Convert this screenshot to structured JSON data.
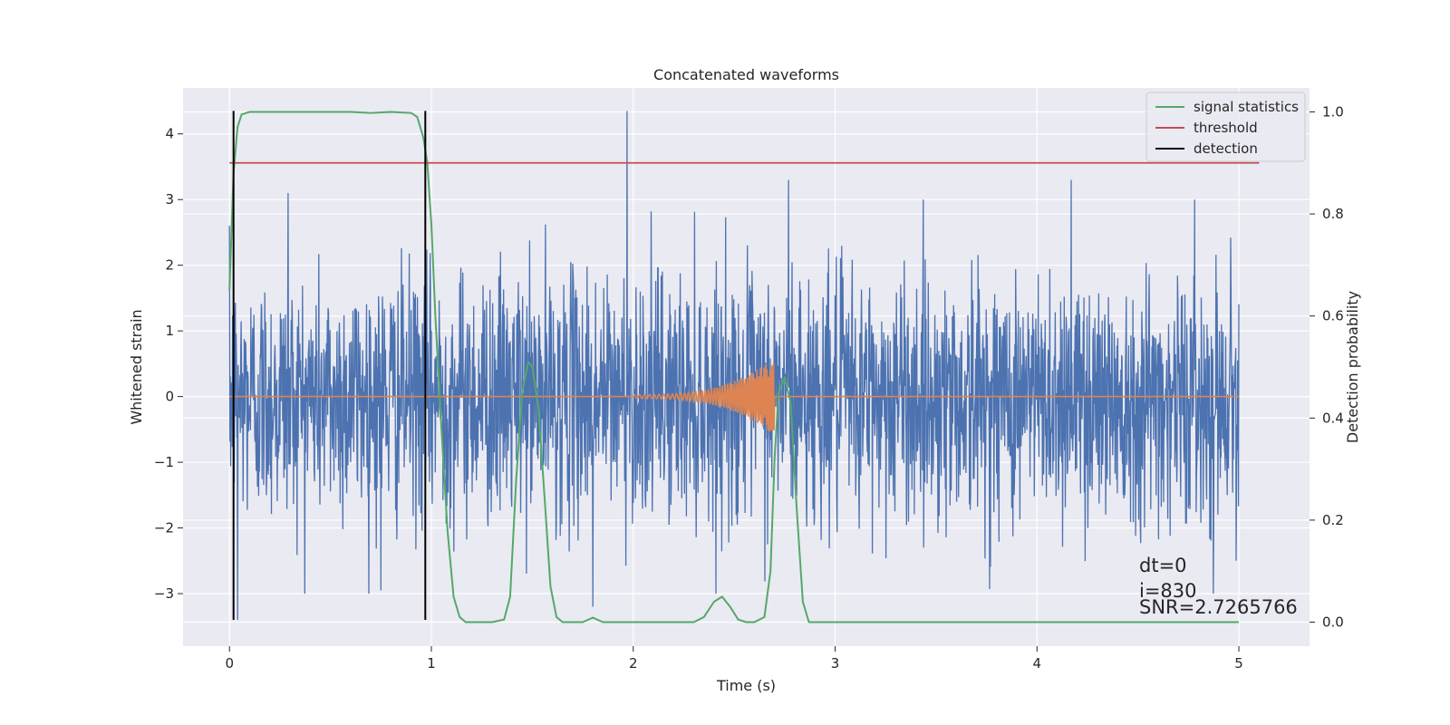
{
  "chart_data": {
    "type": "line",
    "title": "Concatenated waveforms",
    "xlabel": "Time (s)",
    "ylabel": "Whitened strain",
    "ylabel_right": "Detection probability",
    "xlim": [
      -0.23,
      5.35
    ],
    "ylim": [
      -3.8,
      4.7
    ],
    "ylim_right": [
      -0.047,
      1.047
    ],
    "xticks": [
      0,
      1,
      2,
      3,
      4,
      5
    ],
    "yticks": [
      -3,
      -2,
      -1,
      0,
      1,
      2,
      3,
      4
    ],
    "yticks_right": [
      0.0,
      0.2,
      0.4,
      0.6,
      0.8,
      1.0
    ],
    "grid": true,
    "legend_position": "top-right",
    "colors": {
      "strain": "#4c72b0",
      "injection": "#dd8452",
      "signal_statistics": "#55a868",
      "threshold": "#c44e52",
      "detection": "#000000",
      "axes_bg": "#eaeaf2",
      "grid": "#ffffff"
    },
    "series": [
      {
        "name": "signal statistics",
        "axis": "right",
        "color": "#55a868",
        "x": [
          0.0,
          0.02,
          0.04,
          0.06,
          0.1,
          0.2,
          0.4,
          0.6,
          0.7,
          0.8,
          0.9,
          0.93,
          0.96,
          0.98,
          1.0,
          1.02,
          1.05,
          1.08,
          1.11,
          1.14,
          1.17,
          1.2,
          1.3,
          1.36,
          1.39,
          1.42,
          1.45,
          1.48,
          1.5,
          1.53,
          1.56,
          1.59,
          1.62,
          1.65,
          1.7,
          1.75,
          1.8,
          1.85,
          1.9,
          2.0,
          2.1,
          2.2,
          2.3,
          2.35,
          2.4,
          2.44,
          2.48,
          2.52,
          2.56,
          2.6,
          2.65,
          2.68,
          2.7,
          2.72,
          2.75,
          2.78,
          2.81,
          2.84,
          2.87,
          2.9,
          3.0,
          3.5,
          4.0,
          4.5,
          5.0
        ],
        "y": [
          0.65,
          0.88,
          0.97,
          0.995,
          1.0,
          1.0,
          1.0,
          1.0,
          0.998,
          1.0,
          0.998,
          0.99,
          0.95,
          0.9,
          0.78,
          0.6,
          0.38,
          0.18,
          0.05,
          0.01,
          0.0,
          0.0,
          0.0,
          0.005,
          0.05,
          0.28,
          0.45,
          0.51,
          0.5,
          0.42,
          0.25,
          0.07,
          0.01,
          0.0,
          0.0,
          0.0,
          0.009,
          0.0,
          0.0,
          0.0,
          0.0,
          0.0,
          0.0,
          0.01,
          0.04,
          0.05,
          0.03,
          0.005,
          0.0,
          0.0,
          0.01,
          0.1,
          0.32,
          0.45,
          0.48,
          0.43,
          0.22,
          0.04,
          0.0,
          0.0,
          0.0,
          0.0,
          0.0,
          0.0,
          0.0
        ]
      },
      {
        "name": "threshold",
        "axis": "right",
        "color": "#c44e52",
        "x": [
          0.0,
          5.1
        ],
        "y": [
          0.9,
          0.9
        ]
      },
      {
        "name": "detection",
        "axis": "left",
        "color": "#000000",
        "x": [
          0.02,
          0.97
        ],
        "ymin": -3.4,
        "ymax": 4.35
      }
    ],
    "strain_noise": {
      "axis": "left",
      "color": "#4c72b0",
      "x_range": [
        0,
        5
      ],
      "typical_amplitude": 1.25,
      "peak_values": [
        {
          "x": 0.04,
          "y": -3.4
        },
        {
          "x": 0.29,
          "y": 3.1
        },
        {
          "x": 0.75,
          "y": -2.95
        },
        {
          "x": 1.97,
          "y": 4.35
        },
        {
          "x": 1.8,
          "y": -3.2
        },
        {
          "x": 2.77,
          "y": 3.3
        },
        {
          "x": 4.17,
          "y": 3.3
        }
      ]
    },
    "injection": {
      "axis": "left",
      "color": "#dd8452",
      "x_range": [
        0,
        5
      ],
      "chirp_start": 2.0,
      "chirp_end": 2.7,
      "peak_amplitude": 0.6
    },
    "annotations": [
      "dt=0",
      "i=830",
      "SNR=2.7265766"
    ]
  }
}
